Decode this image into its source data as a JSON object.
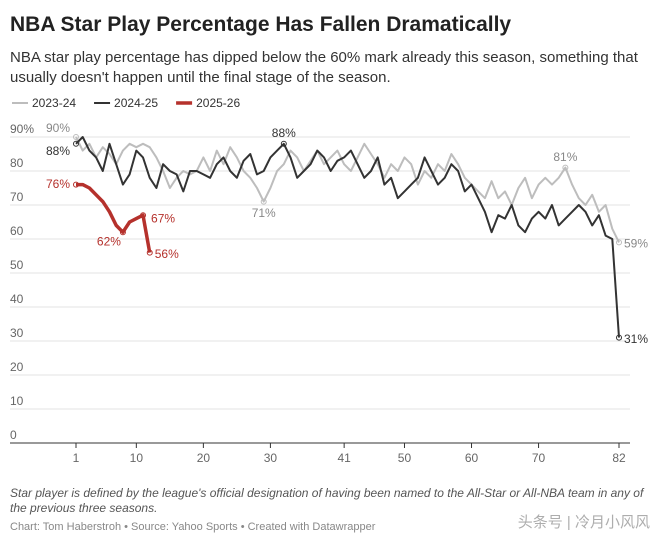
{
  "chart_data": {
    "type": "line",
    "title": "NBA Star Play Percentage Has Fallen Dramatically",
    "subtitle": "NBA star play percentage has dipped below the 60% mark already this season, something that usually doesn't happen until the final stage of the season.",
    "note": "Star player is defined by the league's official designation of having been named to the All-Star or All-NBA team in any of the previous three seasons.",
    "source": "Chart: Tom Haberstroh • Source: Yahoo Sports • Created with Datawrapper",
    "watermark": "头条号 | 冷月小风风",
    "x": [
      1,
      2,
      3,
      4,
      5,
      6,
      7,
      8,
      9,
      10,
      11,
      12,
      13,
      14,
      15,
      16,
      17,
      18,
      19,
      20,
      21,
      22,
      23,
      24,
      25,
      26,
      27,
      28,
      29,
      30,
      31,
      32,
      33,
      34,
      35,
      36,
      37,
      38,
      39,
      40,
      41,
      42,
      43,
      44,
      45,
      46,
      47,
      48,
      49,
      50,
      51,
      52,
      53,
      54,
      55,
      56,
      57,
      58,
      59,
      60,
      61,
      62,
      63,
      64,
      65,
      66,
      67,
      68,
      69,
      70,
      71,
      72,
      73,
      74,
      75,
      76,
      77,
      78,
      79,
      80,
      81,
      82
    ],
    "xlim": [
      1,
      82
    ],
    "xticks": [
      1,
      10,
      20,
      30,
      41,
      50,
      60,
      70,
      82
    ],
    "ylim": [
      0,
      90
    ],
    "yticks": [
      0,
      10,
      20,
      30,
      40,
      50,
      60,
      70,
      80,
      {
        "value": 90,
        "label": "90%"
      }
    ],
    "grid": true,
    "series": [
      {
        "name": "2023-24",
        "color": "#bdbdbd",
        "width": 2,
        "values": [
          90,
          86,
          88,
          84,
          87,
          85,
          82,
          86,
          88,
          87,
          88,
          87,
          84,
          80,
          75,
          78,
          80,
          79,
          80,
          84,
          80,
          86,
          82,
          87,
          84,
          80,
          78,
          75,
          71,
          75,
          80,
          82,
          86,
          84,
          80,
          83,
          86,
          82,
          84,
          86,
          82,
          80,
          84,
          88,
          85,
          82,
          78,
          82,
          80,
          84,
          82,
          76,
          80,
          78,
          82,
          80,
          85,
          82,
          78,
          76,
          74,
          72,
          77,
          72,
          74,
          70,
          75,
          78,
          72,
          76,
          78,
          76,
          78,
          81,
          76,
          72,
          70,
          73,
          68,
          70,
          63,
          59
        ],
        "value_labels": [
          "90%",
          null,
          null,
          null,
          null,
          null,
          null,
          null,
          null,
          null,
          null,
          null,
          null,
          null,
          null,
          null,
          null,
          null,
          null,
          null,
          null,
          null,
          null,
          null,
          null,
          null,
          null,
          null,
          "71%",
          null,
          null,
          null,
          null,
          null,
          null,
          null,
          null,
          null,
          null,
          null,
          null,
          null,
          null,
          null,
          null,
          null,
          null,
          null,
          null,
          null,
          null,
          null,
          null,
          null,
          null,
          null,
          null,
          null,
          null,
          null,
          null,
          null,
          null,
          null,
          null,
          null,
          null,
          null,
          null,
          null,
          null,
          null,
          null,
          "81%",
          null,
          null,
          null,
          null,
          null,
          null,
          null,
          "59%"
        ]
      },
      {
        "name": "2024-25",
        "color": "#333333",
        "width": 2,
        "values": [
          88,
          90,
          86,
          84,
          80,
          88,
          82,
          76,
          79,
          86,
          84,
          78,
          75,
          82,
          80,
          79,
          74,
          80,
          80,
          79,
          78,
          82,
          84,
          80,
          78,
          83,
          85,
          79,
          80,
          84,
          86,
          88,
          84,
          78,
          80,
          82,
          86,
          84,
          80,
          83,
          84,
          86,
          82,
          78,
          80,
          84,
          76,
          78,
          72,
          74,
          76,
          78,
          84,
          80,
          76,
          78,
          82,
          80,
          74,
          76,
          72,
          68,
          62,
          67,
          66,
          70,
          64,
          62,
          66,
          68,
          66,
          70,
          64,
          66,
          68,
          70,
          68,
          64,
          67,
          61,
          60,
          31
        ],
        "value_labels": [
          "88%",
          null,
          null,
          null,
          null,
          null,
          null,
          null,
          null,
          null,
          null,
          null,
          null,
          null,
          null,
          null,
          null,
          null,
          null,
          null,
          null,
          null,
          null,
          null,
          null,
          null,
          null,
          null,
          null,
          null,
          null,
          "88%",
          null,
          null,
          null,
          null,
          null,
          null,
          null,
          null,
          null,
          null,
          null,
          null,
          null,
          null,
          null,
          null,
          null,
          null,
          null,
          null,
          null,
          null,
          null,
          null,
          null,
          null,
          null,
          null,
          null,
          null,
          null,
          null,
          null,
          null,
          null,
          null,
          null,
          null,
          null,
          null,
          null,
          null,
          null,
          null,
          null,
          null,
          null,
          null,
          null,
          "31%"
        ]
      },
      {
        "name": "2025-26",
        "color": "#b5312c",
        "width": 3.5,
        "values": [
          76,
          76,
          75,
          73,
          71,
          68,
          64,
          62,
          65,
          66,
          67,
          56,
          null,
          null,
          null,
          null,
          null,
          null,
          null,
          null,
          null,
          null,
          null,
          null,
          null,
          null,
          null,
          null,
          null,
          null,
          null,
          null,
          null,
          null,
          null,
          null,
          null,
          null,
          null,
          null,
          null,
          null,
          null,
          null,
          null,
          null,
          null,
          null,
          null,
          null,
          null,
          null,
          null,
          null,
          null,
          null,
          null,
          null,
          null,
          null,
          null,
          null,
          null,
          null,
          null,
          null,
          null,
          null,
          null,
          null,
          null,
          null,
          null,
          null,
          null,
          null,
          null,
          null,
          null,
          null,
          null,
          null
        ],
        "value_labels": [
          "76%",
          null,
          null,
          null,
          null,
          null,
          null,
          "62%",
          null,
          null,
          "67%",
          "56%",
          null,
          null,
          null,
          null,
          null,
          null,
          null,
          null,
          null,
          null,
          null,
          null,
          null,
          null,
          null,
          null,
          null,
          null,
          null,
          null,
          null,
          null,
          null,
          null,
          null,
          null,
          null,
          null,
          null,
          null,
          null,
          null,
          null,
          null,
          null,
          null,
          null,
          null,
          null,
          null,
          null,
          null,
          null,
          null,
          null,
          null,
          null,
          null,
          null,
          null,
          null,
          null,
          null,
          null,
          null,
          null,
          null,
          null,
          null,
          null,
          null,
          null,
          null,
          null,
          null,
          null,
          null,
          null,
          null,
          null
        ]
      }
    ]
  }
}
